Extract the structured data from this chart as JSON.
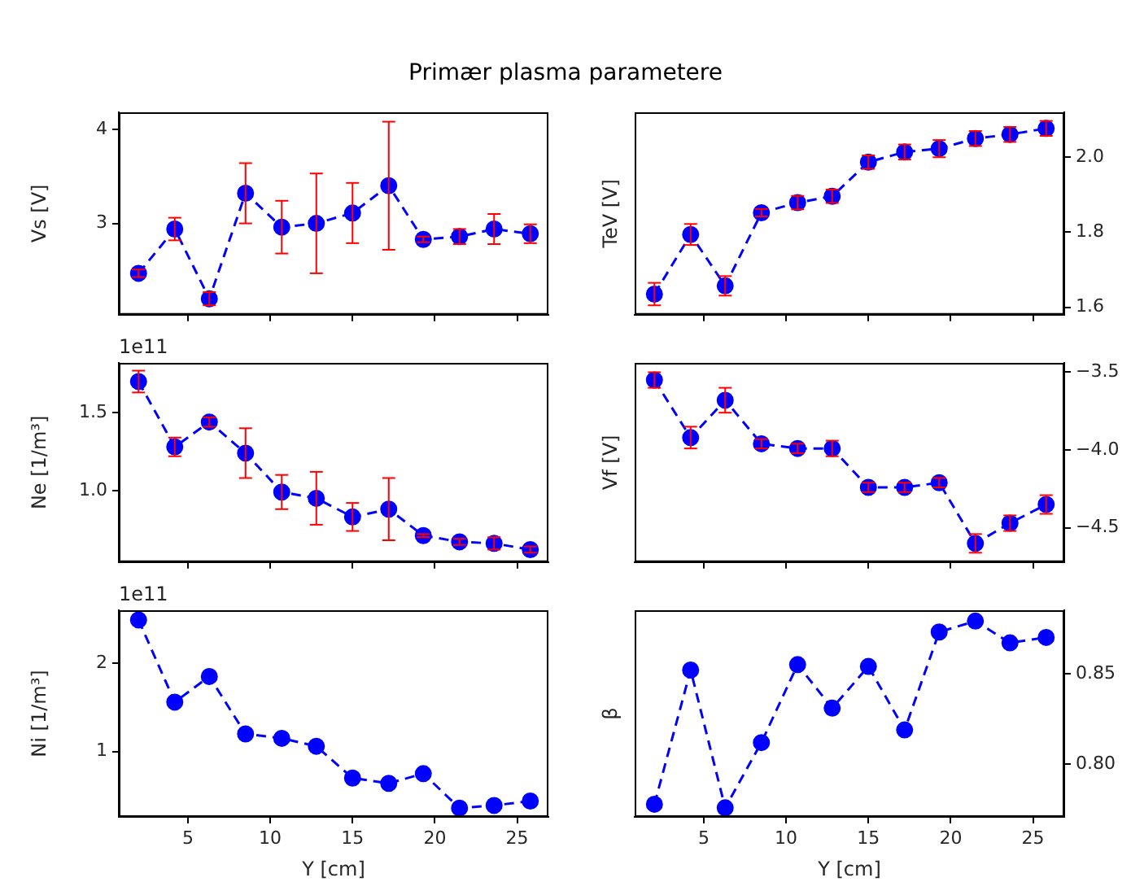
{
  "chart_data": [
    {
      "type": "line",
      "title": "Primær plasma parametere",
      "ylabel": "Vs [V]",
      "color": "#0000ff",
      "marker": "circle",
      "line_style": "dashed",
      "tick_labels": "y",
      "x": [
        2.0,
        4.2,
        6.3,
        8.5,
        10.7,
        12.8,
        15.0,
        17.2,
        19.3,
        21.5,
        23.6,
        25.8
      ],
      "values": [
        2.47,
        2.94,
        2.2,
        3.32,
        2.96,
        3.0,
        3.11,
        3.4,
        2.83,
        2.86,
        2.94,
        2.89
      ],
      "errors": [
        0.04,
        0.12,
        0.07,
        0.32,
        0.28,
        0.53,
        0.32,
        0.68,
        0.03,
        0.08,
        0.16,
        0.1
      ],
      "xlim": [
        0.8,
        26.9
      ],
      "xticks": [
        5,
        10,
        15,
        20,
        25
      ],
      "ylim": [
        2.03,
        4.18
      ],
      "yticks": [
        3,
        4
      ]
    },
    {
      "type": "line",
      "ylabel": "TeV [V]",
      "color": "#0000ff",
      "marker": "circle",
      "line_style": "dashed",
      "tick_labels": "y",
      "x": [
        2.0,
        4.2,
        6.3,
        8.5,
        10.7,
        12.8,
        15.0,
        17.2,
        19.3,
        21.5,
        23.6,
        25.8
      ],
      "values": [
        1.635,
        1.794,
        1.657,
        1.852,
        1.879,
        1.896,
        1.987,
        2.014,
        2.023,
        2.05,
        2.061,
        2.077
      ],
      "errors": [
        0.03,
        0.028,
        0.026,
        0.01,
        0.018,
        0.018,
        0.018,
        0.02,
        0.023,
        0.02,
        0.02,
        0.02
      ],
      "xlim": [
        0.8,
        26.9
      ],
      "xticks": [
        5,
        10,
        15,
        20,
        25
      ],
      "ylim": [
        1.58,
        2.12
      ],
      "yticks": [
        {
          "value": 1.6,
          "label": "1.6"
        },
        {
          "value": 1.8,
          "label": "1.8"
        },
        {
          "value": 2.0,
          "label": "2.0"
        }
      ]
    },
    {
      "type": "line",
      "ylabel": "Ne [1/m³]",
      "annotations": [
        "1e11"
      ],
      "color": "#0000ff",
      "marker": "circle",
      "line_style": "dashed",
      "tick_labels": "y",
      "x": [
        2.0,
        4.2,
        6.3,
        8.5,
        10.7,
        12.8,
        15.0,
        17.2,
        19.3,
        21.5,
        23.6,
        25.8
      ],
      "values": [
        1.7,
        1.28,
        1.44,
        1.24,
        0.99,
        0.95,
        0.83,
        0.88,
        0.71,
        0.67,
        0.66,
        0.62
      ],
      "errors": [
        0.07,
        0.06,
        0.03,
        0.16,
        0.11,
        0.17,
        0.09,
        0.2,
        0.01,
        0.02,
        0.04,
        0.02
      ],
      "xlim": [
        0.8,
        26.9
      ],
      "xticks": [
        5,
        10,
        15,
        20,
        25
      ],
      "ylim": [
        0.54,
        1.82
      ],
      "yticks": [
        {
          "value": 1.0,
          "label": "1.0"
        },
        {
          "value": 1.5,
          "label": "1.5"
        }
      ]
    },
    {
      "type": "line",
      "ylabel": "Vf [V]",
      "color": "#0000ff",
      "marker": "circle",
      "line_style": "dashed",
      "tick_labels": "y",
      "x": [
        2.0,
        4.2,
        6.3,
        8.5,
        10.7,
        12.8,
        15.0,
        17.2,
        19.3,
        21.5,
        23.6,
        25.8
      ],
      "values": [
        -3.55,
        -3.92,
        -3.68,
        -3.96,
        -3.99,
        -3.99,
        -4.24,
        -4.24,
        -4.21,
        -4.6,
        -4.47,
        -4.35
      ],
      "errors": [
        0.05,
        0.07,
        0.08,
        0.03,
        0.03,
        0.05,
        0.03,
        0.03,
        0.03,
        0.06,
        0.05,
        0.06
      ],
      "xlim": [
        0.8,
        26.9
      ],
      "xticks": [
        5,
        10,
        15,
        20,
        25
      ],
      "ylim": [
        -4.72,
        -3.44
      ],
      "yticks": [
        {
          "value": -4.5,
          "label": "−4.5"
        },
        {
          "value": -4.0,
          "label": "−4.0"
        },
        {
          "value": -3.5,
          "label": "−3.5"
        }
      ]
    },
    {
      "type": "line",
      "ylabel": "Ni [1/m³]",
      "xlabel": "Y [cm]",
      "annotations": [
        "1e11"
      ],
      "color": "#0000ff",
      "marker": "circle",
      "line_style": "dashed",
      "x": [
        2.0,
        4.2,
        6.3,
        8.5,
        10.7,
        12.8,
        15.0,
        17.2,
        19.3,
        21.5,
        23.6,
        25.8
      ],
      "values": [
        2.49,
        1.56,
        1.85,
        1.2,
        1.15,
        1.06,
        0.7,
        0.64,
        0.75,
        0.36,
        0.39,
        0.44
      ],
      "xlim": [
        0.8,
        26.9
      ],
      "xticks": [
        5,
        10,
        15,
        20,
        25
      ],
      "ylim": [
        0.26,
        2.6
      ],
      "yticks": [
        1,
        2
      ]
    },
    {
      "type": "line",
      "ylabel": "β",
      "xlabel": "Y [cm]",
      "color": "#0000ff",
      "marker": "circle",
      "line_style": "dashed",
      "x": [
        2.0,
        4.2,
        6.3,
        8.5,
        10.7,
        12.8,
        15.0,
        17.2,
        19.3,
        21.5,
        23.6,
        25.8
      ],
      "values": [
        0.778,
        0.852,
        0.776,
        0.812,
        0.855,
        0.831,
        0.854,
        0.819,
        0.873,
        0.879,
        0.867,
        0.87
      ],
      "xlim": [
        0.8,
        26.9
      ],
      "xticks": [
        5,
        10,
        15,
        20,
        25
      ],
      "ylim": [
        0.771,
        0.885
      ],
      "yticks": [
        {
          "value": 0.8,
          "label": "0.80"
        },
        {
          "value": 0.85,
          "label": "0.85"
        }
      ]
    }
  ]
}
